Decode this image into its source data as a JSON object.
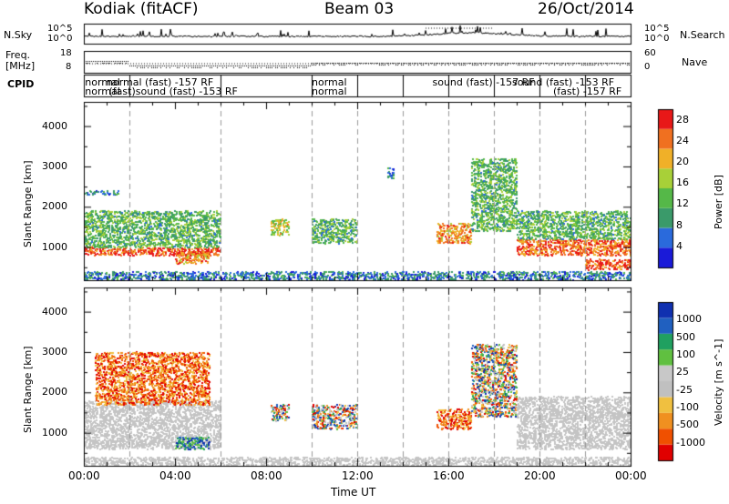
{
  "header": {
    "station": "Kodiak (fitACF)",
    "beam": "Beam 03",
    "date": "26/Oct/2014"
  },
  "panel_labels": {
    "nsky": "N.Sky",
    "nsearch": "N.Search",
    "freq_line1": "Freq.",
    "freq_line2": "[MHz]",
    "nave": "Nave",
    "cpid": "CPID"
  },
  "noise_axis": {
    "left_ticks": [
      "10^5",
      "10^0"
    ],
    "right_ticks": [
      "10^5",
      "10^0"
    ]
  },
  "freq_axis": {
    "left_ticks": [
      "18",
      "8"
    ],
    "right_ticks": [
      "60",
      "0"
    ]
  },
  "cpid_labels": [
    {
      "text": "normal",
      "row": 1,
      "t": 0.05
    },
    {
      "text": "normal (fast) -157 RF",
      "row": 1,
      "t": 1.0
    },
    {
      "text": "normal",
      "row": 2,
      "t": 0.05
    },
    {
      "text": "(fast)sound (fast) -153 RF",
      "row": 2,
      "t": 1.1
    },
    {
      "text": "normal",
      "row": 1,
      "t": 10.0
    },
    {
      "text": "normal",
      "row": 2,
      "t": 10.0
    },
    {
      "text": "sound (fast) -157 RF",
      "row": 1,
      "t": 15.3
    },
    {
      "text": "sound (fast) -153 RF",
      "row": 1,
      "t": 18.8
    },
    {
      "text": "(fast) -157 RF",
      "row": 2,
      "t": 20.6
    }
  ],
  "colors": {
    "power_scale": [
      "#1a1ad8",
      "#2a6adc",
      "#3a9a6a",
      "#55b848",
      "#a8d038",
      "#f0b028",
      "#f07020",
      "#e81818"
    ],
    "velocity_scale": [
      "#e00000",
      "#f05000",
      "#f09020",
      "#f0c040",
      "#c0c0c0",
      "#c8c8c8",
      "#60c040",
      "#20a060",
      "#2060c0",
      "#1030b0"
    ],
    "ground_scatter": "#c4c4c4"
  },
  "chart_data": [
    {
      "type": "heatmap",
      "panel": "power",
      "x_axis": {
        "label": "Time UT",
        "range_hours": [
          0,
          24
        ],
        "ticks": [
          "00:00",
          "04:00",
          "08:00",
          "12:00",
          "16:00",
          "20:00",
          "00:00"
        ]
      },
      "y_axis": {
        "label": "Slant Range [km]",
        "range": [
          180,
          4600
        ],
        "ticks": [
          1000,
          2000,
          3000,
          4000
        ]
      },
      "colorbar": {
        "label": "Power [dB]",
        "ticks": [
          4,
          8,
          12,
          16,
          20,
          24,
          28
        ],
        "range": [
          0,
          30
        ]
      },
      "vertical_dashed_lines_hours": [
        2,
        6,
        10,
        12,
        14,
        16,
        18,
        20,
        22
      ],
      "echo_regions": [
        {
          "t0": 0.0,
          "t1": 6.0,
          "r0": 800,
          "r1": 1000,
          "level": 28
        },
        {
          "t0": 0.0,
          "t1": 6.0,
          "r0": 1000,
          "r1": 1900,
          "level": 12
        },
        {
          "t0": 0.0,
          "t1": 1.5,
          "r0": 2300,
          "r1": 2400,
          "level": 6
        },
        {
          "t0": 4.0,
          "t1": 5.5,
          "r0": 600,
          "r1": 900,
          "level": 24
        },
        {
          "t0": 8.2,
          "t1": 9.0,
          "r0": 1300,
          "r1": 1700,
          "level": 18
        },
        {
          "t0": 10.0,
          "t1": 12.0,
          "r0": 1100,
          "r1": 1700,
          "level": 12
        },
        {
          "t0": 13.3,
          "t1": 13.6,
          "r0": 2700,
          "r1": 3000,
          "level": 6
        },
        {
          "t0": 15.5,
          "t1": 17.0,
          "r0": 1100,
          "r1": 1600,
          "level": 24
        },
        {
          "t0": 17.0,
          "t1": 19.0,
          "r0": 1400,
          "r1": 3200,
          "level": 12
        },
        {
          "t0": 19.0,
          "t1": 24.0,
          "r0": 800,
          "r1": 1200,
          "level": 26
        },
        {
          "t0": 19.0,
          "t1": 24.0,
          "r0": 1200,
          "r1": 1900,
          "level": 12
        },
        {
          "t0": 22.0,
          "t1": 24.0,
          "r0": 450,
          "r1": 700,
          "level": 28
        },
        {
          "t0": 0.0,
          "t1": 24.0,
          "r0": 200,
          "r1": 400,
          "level": 6
        }
      ]
    },
    {
      "type": "heatmap",
      "panel": "velocity",
      "x_axis": {
        "label": "Time UT",
        "range_hours": [
          0,
          24
        ],
        "ticks": [
          "00:00",
          "04:00",
          "08:00",
          "12:00",
          "16:00",
          "20:00",
          "00:00"
        ]
      },
      "y_axis": {
        "label": "Slant Range [km]",
        "range": [
          180,
          4600
        ],
        "ticks": [
          1000,
          2000,
          3000,
          4000
        ]
      },
      "colorbar": {
        "label": "Velocity [m s^-1]",
        "ticks": [
          1000,
          500,
          100,
          25,
          -25,
          -100,
          -500,
          -1000
        ]
      },
      "vertical_dashed_lines_hours": [
        2,
        6,
        10,
        12,
        14,
        16,
        18,
        20,
        22
      ],
      "echo_regions": [
        {
          "t0": 0.0,
          "t1": 6.0,
          "r0": 600,
          "r1": 1800,
          "kind": "ground"
        },
        {
          "t0": 0.5,
          "t1": 5.5,
          "r0": 1700,
          "r1": 3000,
          "kind": "negative"
        },
        {
          "t0": 4.0,
          "t1": 5.5,
          "r0": 600,
          "r1": 900,
          "kind": "positive"
        },
        {
          "t0": 8.2,
          "t1": 9.0,
          "r0": 1300,
          "r1": 1700,
          "kind": "mixed"
        },
        {
          "t0": 10.0,
          "t1": 12.0,
          "r0": 1100,
          "r1": 1700,
          "kind": "mixed"
        },
        {
          "t0": 15.5,
          "t1": 17.0,
          "r0": 1100,
          "r1": 1600,
          "kind": "negative"
        },
        {
          "t0": 17.0,
          "t1": 19.0,
          "r0": 1400,
          "r1": 3200,
          "kind": "mixed"
        },
        {
          "t0": 19.0,
          "t1": 24.0,
          "r0": 600,
          "r1": 1900,
          "kind": "ground"
        },
        {
          "t0": 0.0,
          "t1": 24.0,
          "r0": 200,
          "r1": 400,
          "kind": "ground"
        }
      ]
    }
  ]
}
